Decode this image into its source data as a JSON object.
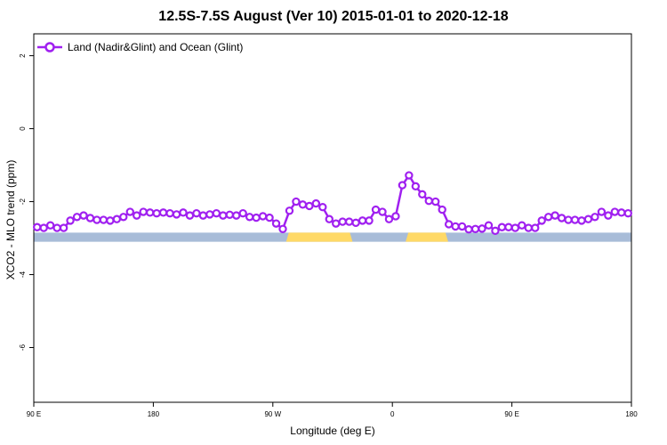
{
  "chart_data": {
    "type": "line",
    "title": "12.5S-7.5S August (Ver 10)   2015-01-01 to 2020-12-18",
    "xlabel": "Longitude (deg E)",
    "ylabel": "XCO2 - MLO trend (ppm)",
    "x_tick_labels": [
      "90 E",
      "180",
      "90 W",
      "0",
      "90 E",
      "180"
    ],
    "x_tick_values": [
      90,
      180,
      270,
      360,
      450,
      540
    ],
    "y_tick_labels": [
      "2",
      "0",
      "-2",
      "-4",
      "-6"
    ],
    "y_tick_values": [
      2,
      0,
      -2,
      -4,
      -6
    ],
    "xlim": [
      90,
      540
    ],
    "ylim": [
      -7.5,
      2.6
    ],
    "series": [
      {
        "name": "Land (Nadir&Glint) and Ocean (Glint)",
        "color": "#a020f0",
        "x": [
          92.5,
          97.5,
          102.5,
          107.5,
          112.5,
          117.5,
          122.5,
          127.5,
          132.5,
          137.5,
          142.5,
          147.5,
          152.5,
          157.5,
          162.5,
          167.5,
          172.5,
          177.5,
          182.5,
          187.5,
          192.5,
          197.5,
          202.5,
          207.5,
          212.5,
          217.5,
          222.5,
          227.5,
          232.5,
          237.5,
          242.5,
          247.5,
          252.5,
          257.5,
          262.5,
          267.5,
          272.5,
          277.5,
          282.5,
          287.5,
          292.5,
          297.5,
          302.5,
          307.5,
          312.5,
          317.5,
          322.5,
          327.5,
          332.5,
          337.5,
          342.5,
          347.5,
          352.5,
          357.5,
          362.5,
          367.5,
          372.5,
          377.5,
          382.5,
          387.5,
          392.5,
          397.5,
          402.5,
          407.5,
          412.5,
          417.5,
          422.5,
          427.5,
          432.5,
          437.5,
          442.5,
          447.5,
          452.5,
          457.5,
          462.5,
          467.5,
          472.5,
          477.5,
          482.5,
          487.5,
          492.5,
          497.5,
          502.5,
          507.5,
          512.5,
          517.5,
          522.5,
          527.5,
          532.5,
          537.5
        ],
        "y": [
          -2.7,
          -2.72,
          -2.65,
          -2.72,
          -2.72,
          -2.52,
          -2.42,
          -2.38,
          -2.45,
          -2.5,
          -2.5,
          -2.52,
          -2.48,
          -2.42,
          -2.28,
          -2.38,
          -2.28,
          -2.3,
          -2.32,
          -2.3,
          -2.32,
          -2.35,
          -2.3,
          -2.38,
          -2.32,
          -2.38,
          -2.35,
          -2.32,
          -2.38,
          -2.36,
          -2.38,
          -2.32,
          -2.42,
          -2.44,
          -2.4,
          -2.44,
          -2.6,
          -2.75,
          -2.25,
          -2.0,
          -2.08,
          -2.12,
          -2.05,
          -2.15,
          -2.48,
          -2.6,
          -2.55,
          -2.55,
          -2.58,
          -2.52,
          -2.52,
          -2.22,
          -2.28,
          -2.48,
          -2.4,
          -1.55,
          -1.28,
          -1.58,
          -1.8,
          -1.98,
          -2.0,
          -2.22,
          -2.62,
          -2.68,
          -2.68,
          -2.76,
          -2.75,
          -2.74,
          -2.65,
          -2.8,
          -2.7,
          -2.7,
          -2.72,
          -2.65,
          -2.72,
          -2.72,
          -2.52,
          -2.42,
          -2.38,
          -2.45,
          -2.5,
          -2.5,
          -2.52,
          -2.48,
          -2.42,
          -2.28,
          -2.38,
          -2.28,
          -2.3,
          -2.32
        ]
      }
    ],
    "surface_band": {
      "y_range": [
        -2.85,
        -3.1
      ],
      "ocean_color": "#a8bcd8",
      "land_color": "#ffd966",
      "land_segments": [
        [
          282,
          328
        ],
        [
          372,
          400
        ]
      ]
    },
    "legend_position": "top-left",
    "grid": false
  }
}
